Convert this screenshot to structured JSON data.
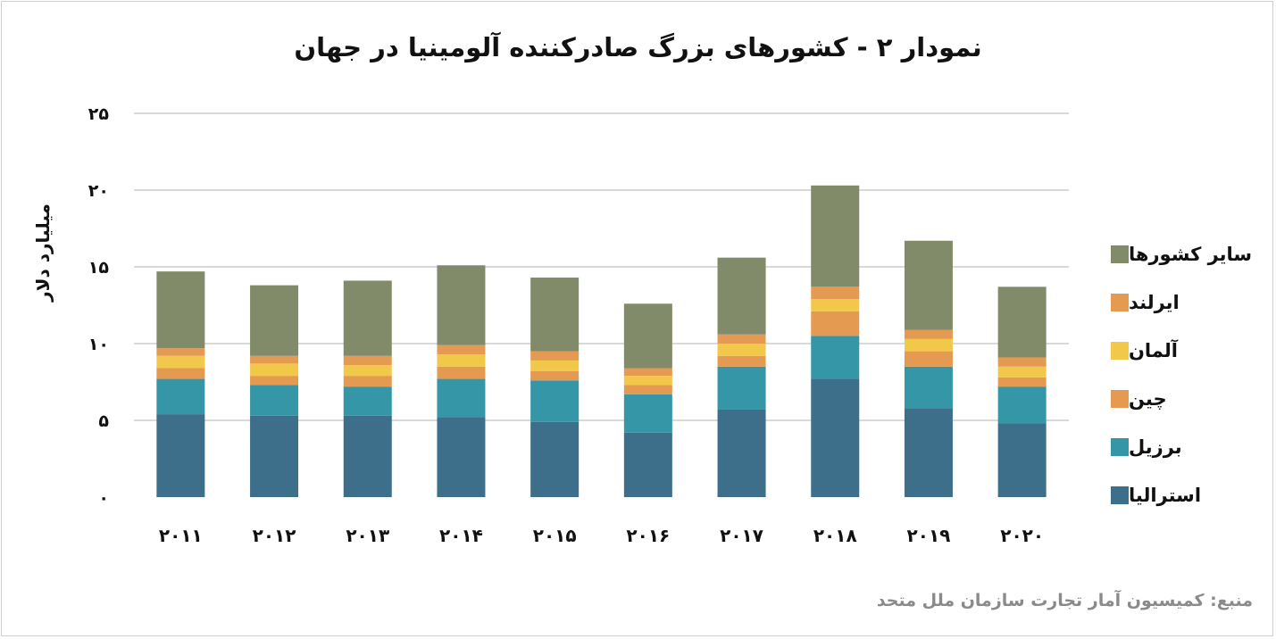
{
  "title": "نمودار ۲ - کشورهای بزرگ صادرکننده آلومینیا در جهان",
  "source": "منبع: کمیسیون آمار تجارت سازمان ملل متحد",
  "chart_data": {
    "type": "bar",
    "stacked": true,
    "title": "نمودار ۲ - کشورهای بزرگ صادرکننده آلومینیا در جهان",
    "xlabel": "",
    "ylabel": "میلیارد دلار",
    "ylim": [
      0,
      25
    ],
    "y_ticks": [
      0,
      5,
      10,
      15,
      20,
      25
    ],
    "y_tick_labels": [
      "۰",
      "۵",
      "۱۰",
      "۱۵",
      "۲۰",
      "۲۵"
    ],
    "grid": true,
    "legend_position": "right",
    "categories": [
      "2011",
      "2012",
      "2013",
      "2014",
      "2015",
      "2016",
      "2017",
      "2018",
      "2019",
      "2020"
    ],
    "category_labels": [
      "۲۰۱۱",
      "۲۰۱۲",
      "۲۰۱۳",
      "۲۰۱۴",
      "۲۰۱۵",
      "۲۰۱۶",
      "۲۰۱۷",
      "۲۰۱۸",
      "۲۰۱۹",
      "۲۰۲۰"
    ],
    "series": [
      {
        "name": "استرالیا",
        "color": "#3d6e8a",
        "values": [
          5.4,
          5.3,
          5.3,
          5.2,
          4.9,
          4.2,
          5.7,
          7.7,
          5.8,
          4.8
        ]
      },
      {
        "name": "برزیل",
        "color": "#3596a8",
        "values": [
          2.3,
          2.0,
          1.9,
          2.5,
          2.7,
          2.5,
          2.8,
          2.8,
          2.7,
          2.4
        ]
      },
      {
        "name": "چین",
        "color": "#e59a52",
        "values": [
          0.7,
          0.6,
          0.7,
          0.8,
          0.6,
          0.6,
          0.7,
          1.6,
          1.0,
          0.6
        ]
      },
      {
        "name": "آلمان",
        "color": "#f2c84b",
        "values": [
          0.8,
          0.8,
          0.7,
          0.8,
          0.7,
          0.6,
          0.8,
          0.8,
          0.8,
          0.7
        ]
      },
      {
        "name": "ایرلند",
        "color": "#e59a52",
        "values": [
          0.5,
          0.5,
          0.6,
          0.6,
          0.6,
          0.5,
          0.6,
          0.8,
          0.6,
          0.6
        ]
      },
      {
        "name": "سایر کشورها",
        "color": "#818a69",
        "values": [
          5.0,
          4.6,
          4.9,
          5.2,
          4.8,
          4.2,
          5.0,
          6.6,
          5.8,
          4.6
        ]
      }
    ]
  }
}
